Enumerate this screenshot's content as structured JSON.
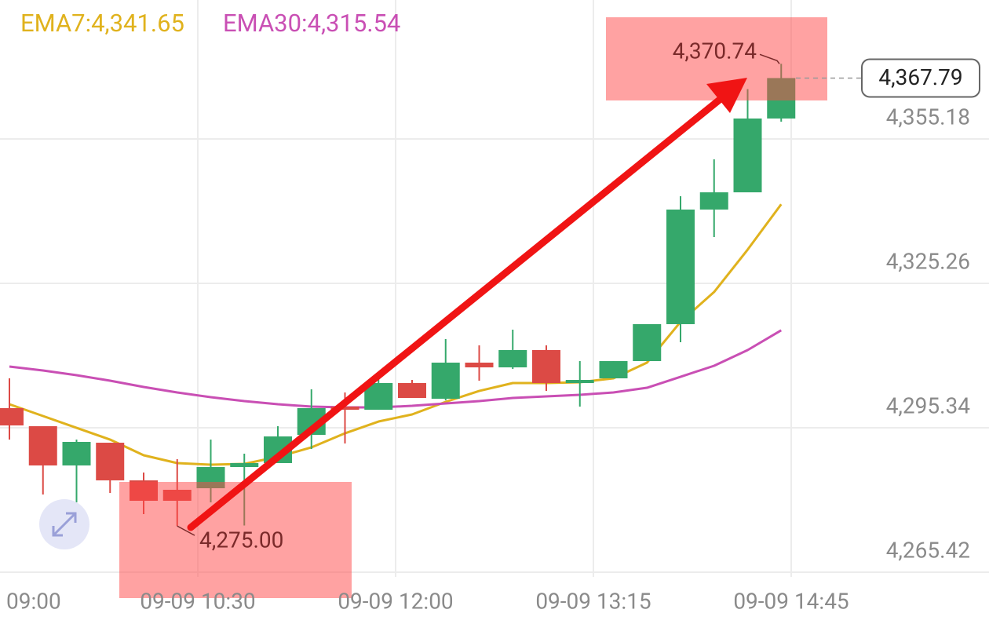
{
  "chart_data": {
    "type": "candlestick",
    "legend": [
      {
        "label": "EMA7:4,341.65",
        "color": "#e0b21d"
      },
      {
        "label": "EMA30:4,315.54",
        "color": "#c94fb4"
      }
    ],
    "ylim": [
      4264.45,
      4383.96
    ],
    "yticks": [
      {
        "value": 4355.18,
        "label": "4,355.18"
      },
      {
        "value": 4325.26,
        "label": "4,325.26"
      },
      {
        "value": 4295.34,
        "label": "4,295.34"
      },
      {
        "value": 4265.42,
        "label": "4,265.42"
      }
    ],
    "xticks": [
      "09:00",
      "09-09 10:30",
      "09-09 12:00",
      "09-09 13:15",
      "09-09 14:45"
    ],
    "grid": true,
    "up_color": "#35a86b",
    "down_color": "#dc4a45",
    "candles": [
      {
        "open": 4299.41,
        "high": 4305.59,
        "low": 4292.9,
        "close": 4295.83
      },
      {
        "open": 4295.67,
        "high": 4295.67,
        "low": 4281.52,
        "close": 4287.54
      },
      {
        "open": 4287.54,
        "high": 4292.9,
        "low": 4279.89,
        "close": 4292.42
      },
      {
        "open": 4292.25,
        "high": 4292.25,
        "low": 4281.85,
        "close": 4284.45
      },
      {
        "open": 4284.45,
        "high": 4286.07,
        "low": 4277.46,
        "close": 4280.22
      },
      {
        "open": 4282.5,
        "high": 4288.84,
        "low": 4275.0,
        "close": 4280.22
      },
      {
        "open": 4282.82,
        "high": 4292.9,
        "low": 4279.89,
        "close": 4287.21
      },
      {
        "open": 4287.21,
        "high": 4289.98,
        "low": 4275.1,
        "close": 4288.03
      },
      {
        "open": 4288.03,
        "high": 4295.67,
        "low": 4288.03,
        "close": 4293.55
      },
      {
        "open": 4293.88,
        "high": 4303.31,
        "low": 4290.95,
        "close": 4299.41
      },
      {
        "open": 4299.73,
        "high": 4302.66,
        "low": 4292.09,
        "close": 4299.08
      },
      {
        "open": 4299.08,
        "high": 4306.56,
        "low": 4299.08,
        "close": 4304.61
      },
      {
        "open": 4304.61,
        "high": 4305.26,
        "low": 4301.52,
        "close": 4301.52
      },
      {
        "open": 4301.36,
        "high": 4313.72,
        "low": 4301.03,
        "close": 4308.84
      },
      {
        "open": 4308.84,
        "high": 4312.42,
        "low": 4305.1,
        "close": 4307.86
      },
      {
        "open": 4307.86,
        "high": 4315.67,
        "low": 4307.54,
        "close": 4311.44
      },
      {
        "open": 4311.44,
        "high": 4312.42,
        "low": 4302.98,
        "close": 4304.61
      },
      {
        "open": 4304.61,
        "high": 4309.16,
        "low": 4299.73,
        "close": 4305.26
      },
      {
        "open": 4305.59,
        "high": 4309.16,
        "low": 4305.59,
        "close": 4309.16
      },
      {
        "open": 4309.16,
        "high": 4316.81,
        "low": 4309.16,
        "close": 4316.81
      },
      {
        "open": 4316.81,
        "high": 4343.31,
        "low": 4313.07,
        "close": 4340.55
      },
      {
        "open": 4340.55,
        "high": 4350.95,
        "low": 4334.85,
        "close": 4344.12
      },
      {
        "open": 4344.12,
        "high": 4365.5,
        "low": 4344.12,
        "close": 4359.41
      },
      {
        "open": 4359.41,
        "high": 4370.74,
        "low": 4358.76,
        "close": 4367.79
      }
    ],
    "series": [
      {
        "name": "EMA7",
        "color": "#e0b21d",
        "values": [
          4300.22,
          4297.78,
          4295.34,
          4292.9,
          4289.65,
          4288.03,
          4287.7,
          4287.86,
          4289.33,
          4291.28,
          4294.2,
          4296.64,
          4298.11,
          4300.71,
          4302.98,
          4304.61,
          4304.61,
          4304.77,
          4305.59,
          4308.84,
          4317.29,
          4323.47,
          4332.25,
          4341.65
        ]
      },
      {
        "name": "EMA30",
        "color": "#c94fb4",
        "values": [
          4308.03,
          4307.21,
          4306.24,
          4305.1,
          4303.8,
          4302.66,
          4301.68,
          4300.87,
          4300.22,
          4299.73,
          4299.57,
          4299.57,
          4299.89,
          4300.38,
          4300.87,
          4301.52,
          4301.85,
          4302.17,
          4302.66,
          4303.63,
          4305.91,
          4308.19,
          4311.44,
          4315.54
        ]
      }
    ],
    "annotations": [
      {
        "label": "4,370.74",
        "value": 4370.74
      },
      {
        "label": "4,275.00",
        "value": 4275.0
      }
    ],
    "last_price": {
      "label": "4,367.79",
      "value": 4367.79
    }
  }
}
